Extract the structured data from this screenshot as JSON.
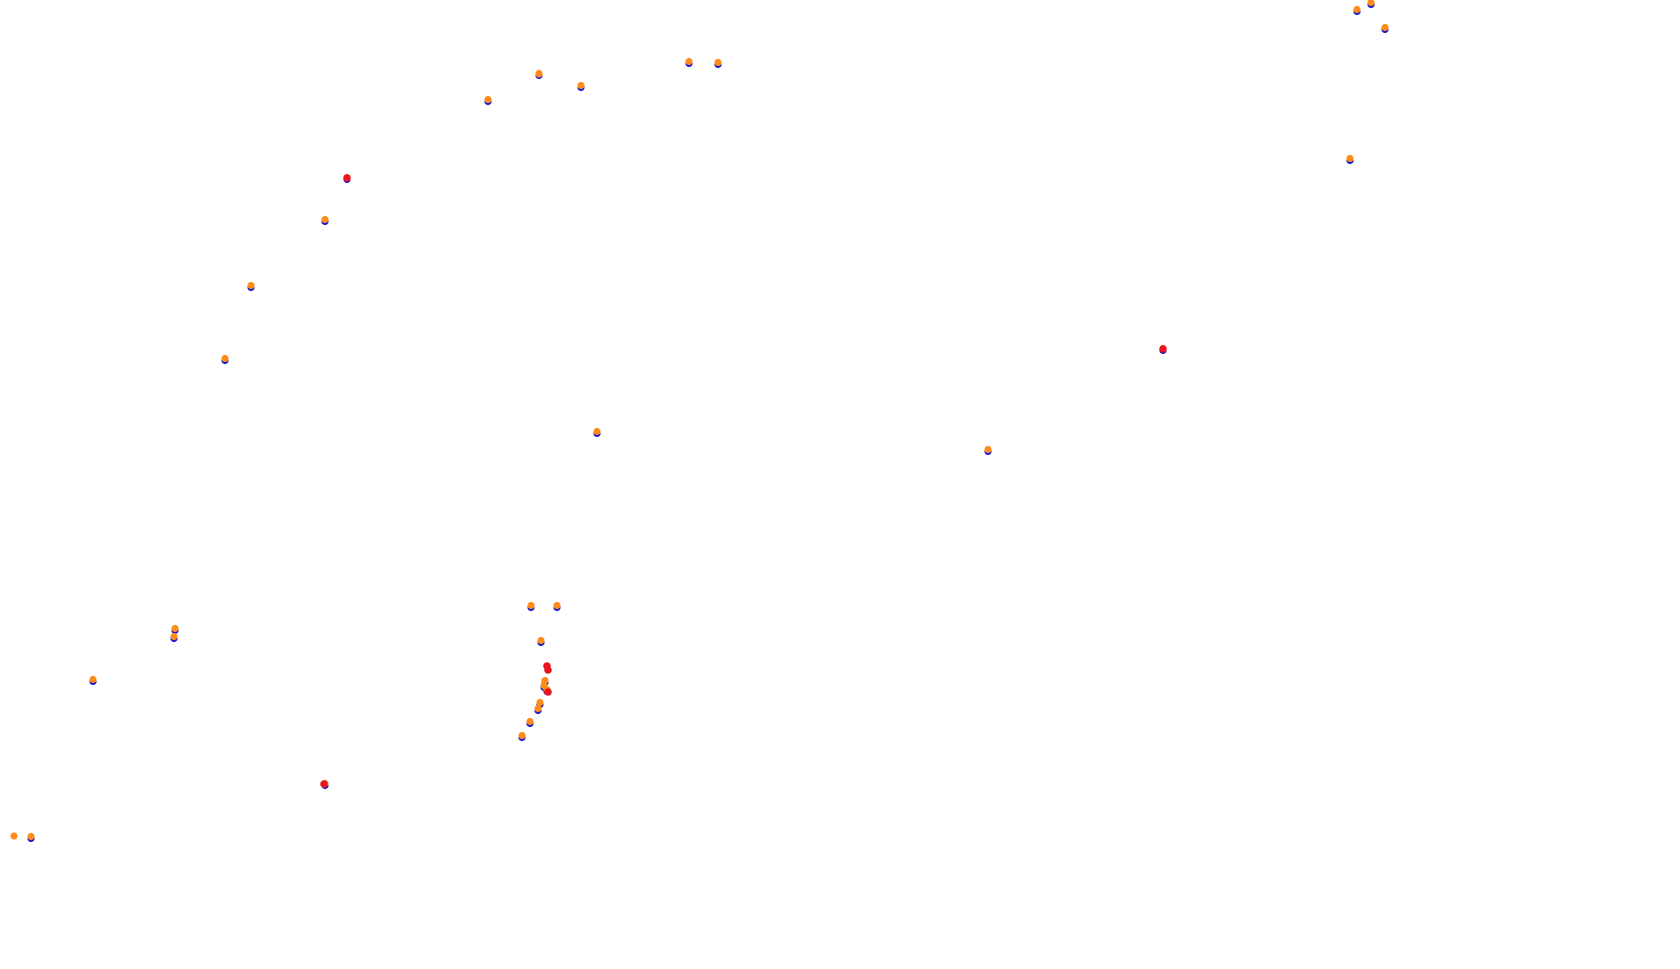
{
  "colors": {
    "background": "#ffffff",
    "blue": "#1a1acc",
    "orange": "#ff8c1a",
    "red": "#e8141e"
  },
  "point_pairs": [
    {
      "kind": "pair"
    },
    {
      "kind": "pair"
    },
    {
      "kind": "pair"
    },
    {
      "kind": "pair"
    },
    {
      "kind": "pair"
    },
    {
      "kind": "pair"
    },
    {
      "kind": "pair"
    },
    {
      "kind": "pair"
    },
    {
      "kind": "pair"
    },
    {
      "kind": "pair"
    },
    {
      "kind": "pair"
    },
    {
      "kind": "pair"
    },
    {
      "kind": "pair"
    },
    {
      "kind": "pair"
    },
    {
      "kind": "pair"
    },
    {
      "kind": "pair"
    },
    {
      "kind": "pair"
    },
    {
      "kind": "pair"
    },
    {
      "kind": "pair"
    },
    {
      "kind": "pair"
    },
    {
      "kind": "pair"
    },
    {
      "kind": "pair"
    },
    {
      "kind": "pair"
    },
    {
      "kind": "pair"
    },
    {
      "kind": "pair"
    },
    {
      "kind": "pair"
    },
    {
      "kind": "pair"
    },
    {
      "kind": "pair"
    },
    {
      "kind": "pair"
    },
    {
      "kind": "pair"
    },
    {
      "kind": "pair"
    }
  ],
  "highlight_points": [
    {
      "kind": "red"
    },
    {
      "kind": "red"
    },
    {
      "kind": "red"
    },
    {
      "kind": "red"
    },
    {
      "kind": "red"
    },
    {
      "kind": "red"
    }
  ],
  "lone_points": [
    {
      "kind": "orange-only"
    },
    {
      "kind": "orange-only"
    }
  ]
}
